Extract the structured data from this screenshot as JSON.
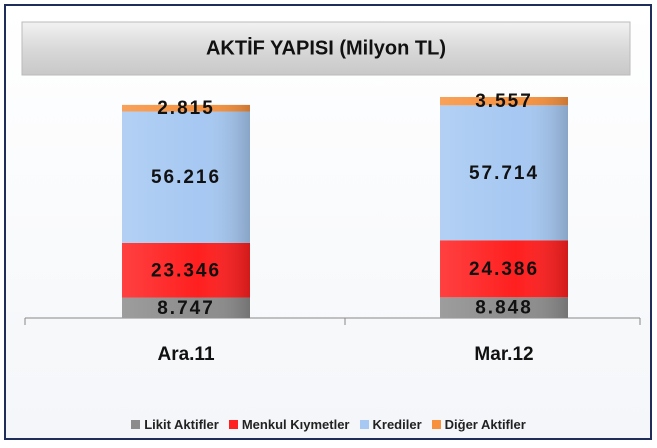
{
  "chart_data": {
    "type": "bar",
    "stacked": true,
    "title": "AKTİF YAPISI (Milyon TL)",
    "categories": [
      "Ara.11",
      "Mar.12"
    ],
    "series": [
      {
        "name": "Likit Aktifler",
        "color": "#8c8c8c",
        "values": [
          8747,
          8848
        ],
        "value_labels": [
          "8.747",
          "8.848"
        ]
      },
      {
        "name": "Menkul Kıymetler",
        "color": "#ff1f1f",
        "values": [
          23346,
          24386
        ],
        "value_labels": [
          "23.346",
          "24.386"
        ]
      },
      {
        "name": "Krediler",
        "color": "#a6c8f2",
        "values": [
          56216,
          57714
        ],
        "value_labels": [
          "56.216",
          "57.714"
        ]
      },
      {
        "name": "Diğer Aktifler",
        "color": "#f7913d",
        "values": [
          2815,
          3557
        ],
        "value_labels": [
          "2.815",
          "3.557"
        ]
      }
    ],
    "legend": "bottom"
  }
}
